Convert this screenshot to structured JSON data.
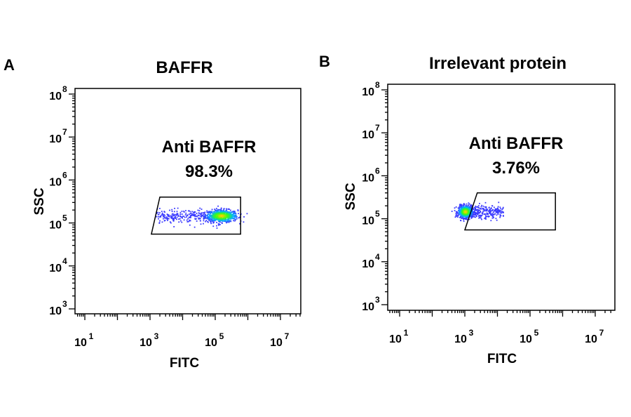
{
  "chart_data": [
    {
      "type": "scatter",
      "panel_label": "A",
      "title": "BAFFR",
      "xlabel": "FITC",
      "ylabel": "SSC",
      "x_scale": "log",
      "y_scale": "log",
      "x_ticks": [
        10,
        1000,
        100000,
        10000000
      ],
      "y_ticks": [
        1000,
        10000,
        100000,
        1000000,
        10000000,
        100000000
      ],
      "gate_label": "Anti BAFFR",
      "gate_percent": "98.3%",
      "gate_polygon": [
        {
          "x": 2000,
          "y": 400000
        },
        {
          "x": 600000,
          "y": 400000
        },
        {
          "x": 600000,
          "y": 55000
        },
        {
          "x": 1100,
          "y": 55000
        }
      ],
      "population": {
        "x_center": 150000,
        "y_center": 150000,
        "x_log_spread": 0.45,
        "y_log_spread": 0.07,
        "tail_x_min": 1500
      },
      "grid": false
    },
    {
      "type": "scatter",
      "panel_label": "B",
      "title": "Irrelevant protein",
      "xlabel": "FITC",
      "ylabel": "SSC",
      "x_scale": "log",
      "y_scale": "log",
      "x_ticks": [
        10,
        1000,
        100000,
        10000000
      ],
      "y_ticks": [
        1000,
        10000,
        100000,
        1000000,
        10000000,
        100000000
      ],
      "gate_label": "Anti BAFFR",
      "gate_percent": "3.76%",
      "gate_polygon": [
        {
          "x": 2400,
          "y": 400000
        },
        {
          "x": 600000,
          "y": 400000
        },
        {
          "x": 600000,
          "y": 55000
        },
        {
          "x": 1000,
          "y": 55000
        }
      ],
      "population": {
        "x_center": 1000,
        "y_center": 150000,
        "x_log_spread": 0.2,
        "y_log_spread": 0.07,
        "tail_x_max": 15000
      },
      "grid": false
    }
  ],
  "colors": {
    "axis": "#000000",
    "gate": "#000000",
    "density_low": "#3a3aff",
    "density_mid": "#00b4ff",
    "density_high": "#39ff14",
    "density_peak": "#ffd000"
  }
}
